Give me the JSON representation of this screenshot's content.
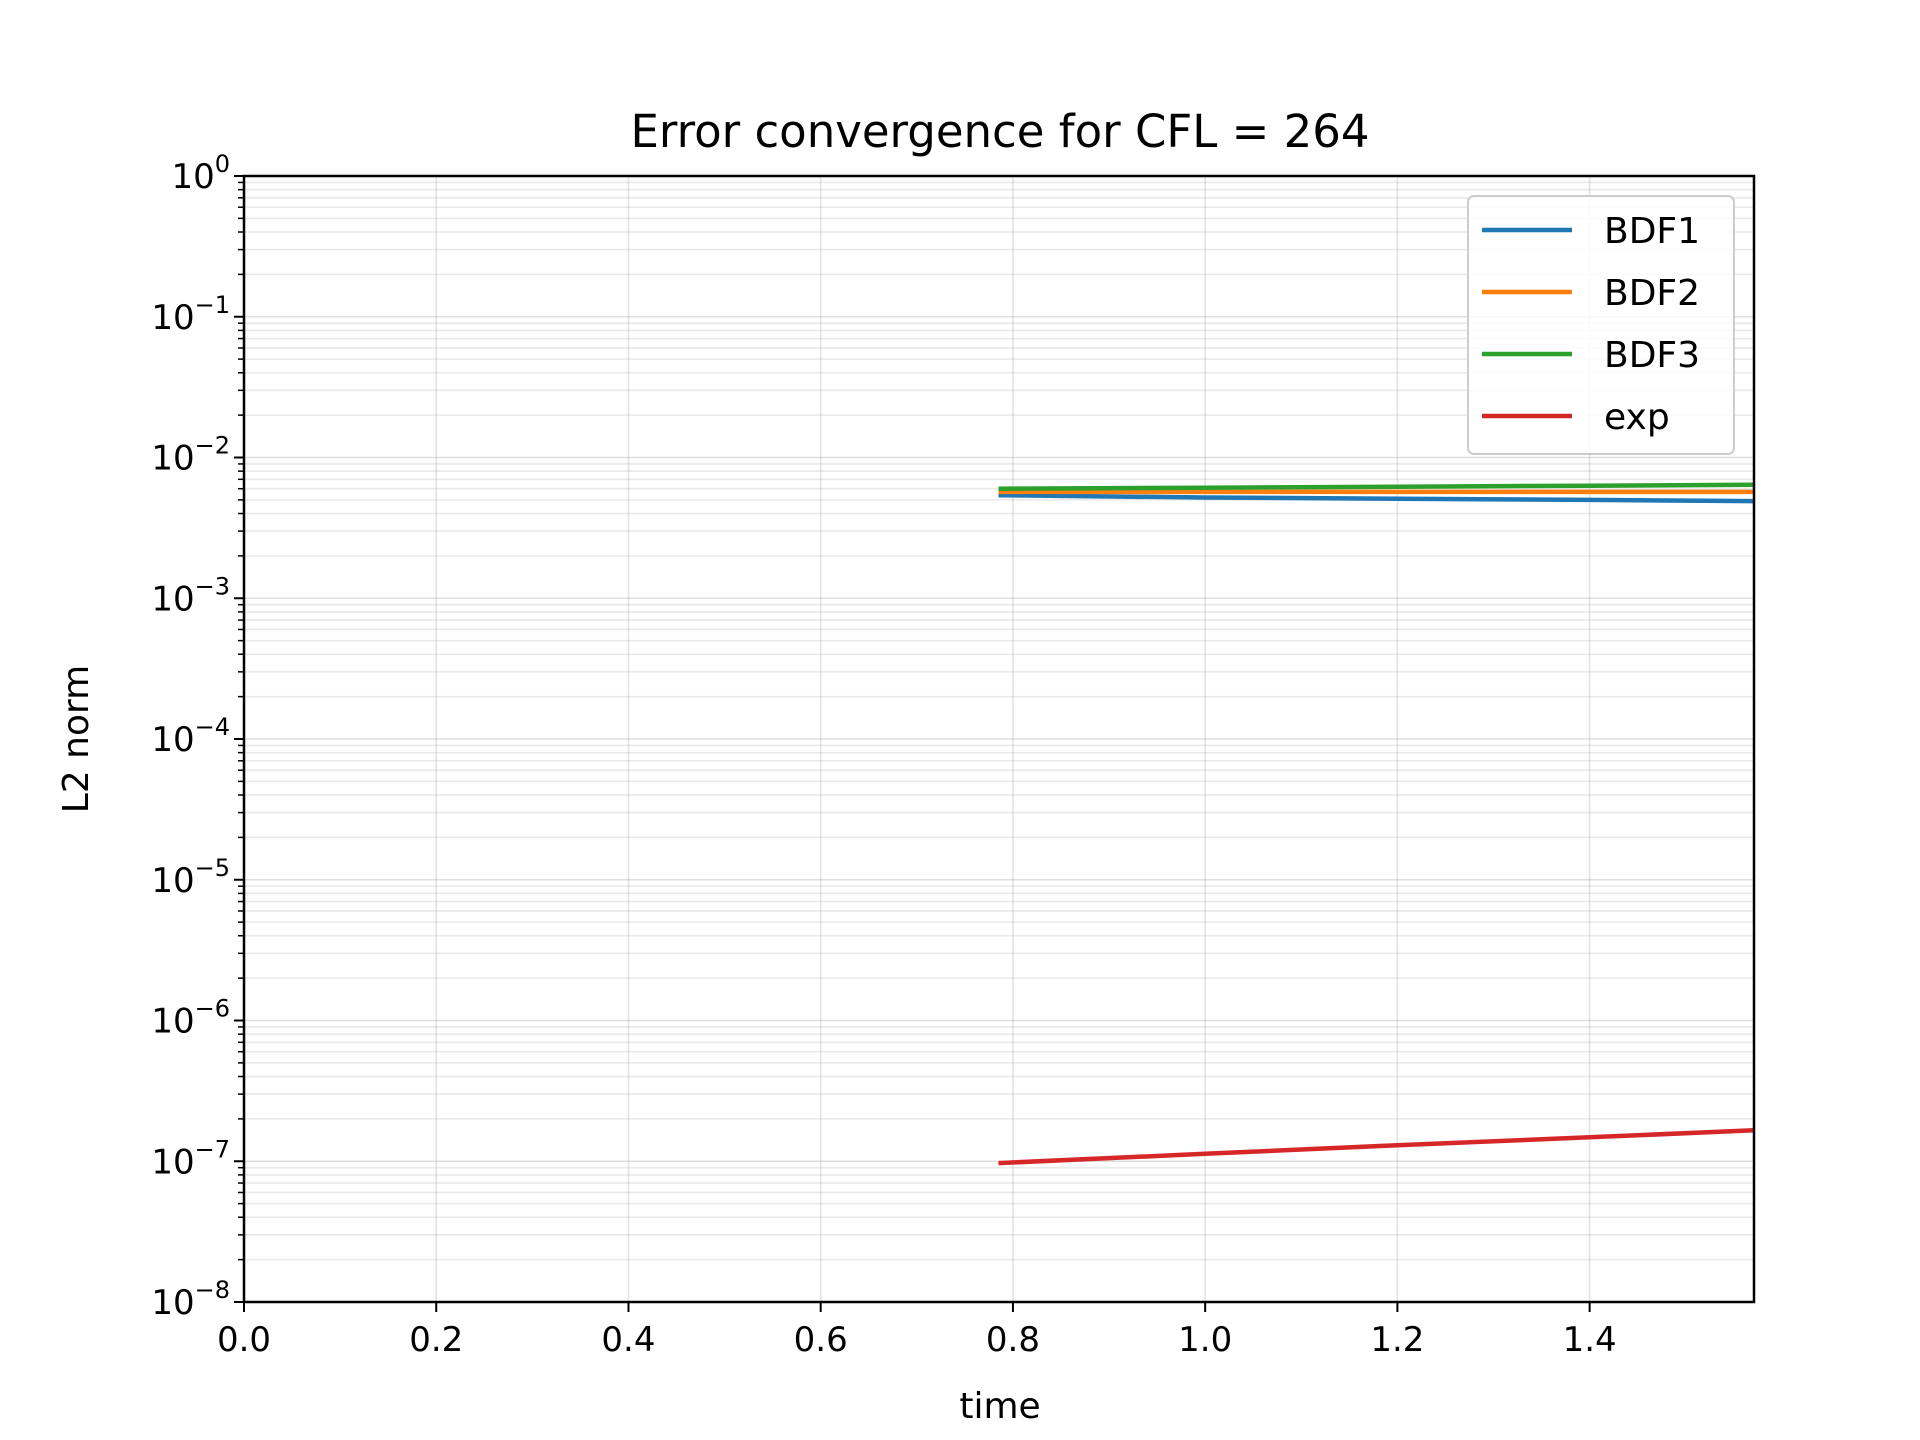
{
  "chart_data": {
    "type": "line",
    "title": "Error convergence for CFL = 264",
    "xlabel": "time",
    "ylabel": "L2 norm",
    "xlim": [
      0.0,
      1.571
    ],
    "ylim": [
      1e-08,
      1
    ],
    "yscale": "log",
    "grid": true,
    "legend_position": "top-right",
    "x_ticks": [
      "0.0",
      "0.2",
      "0.4",
      "0.6",
      "0.8",
      "1.0",
      "1.2",
      "1.4"
    ],
    "x_tick_values": [
      0.0,
      0.2,
      0.4,
      0.6,
      0.8,
      1.0,
      1.2,
      1.4
    ],
    "y_ticks": [
      {
        "base": "10",
        "exp": "0"
      },
      {
        "base": "10",
        "exp": "−1"
      },
      {
        "base": "10",
        "exp": "−2"
      },
      {
        "base": "10",
        "exp": "−3"
      },
      {
        "base": "10",
        "exp": "−4"
      },
      {
        "base": "10",
        "exp": "−5"
      },
      {
        "base": "10",
        "exp": "−6"
      },
      {
        "base": "10",
        "exp": "−7"
      },
      {
        "base": "10",
        "exp": "−8"
      }
    ],
    "y_tick_values": [
      1,
      0.1,
      0.01,
      0.001,
      0.0001,
      1e-05,
      1e-06,
      1e-07,
      1e-08
    ],
    "series": [
      {
        "name": "BDF1",
        "color": "#1f77b4",
        "x": [
          0.785,
          1.0,
          1.2,
          1.4,
          1.571
        ],
        "y": [
          0.0054,
          0.0052,
          0.0051,
          0.005,
          0.0049
        ]
      },
      {
        "name": "BDF2",
        "color": "#ff7f0e",
        "x": [
          0.785,
          1.0,
          1.2,
          1.4,
          1.571
        ],
        "y": [
          0.0057,
          0.0057,
          0.0057,
          0.0057,
          0.0057
        ]
      },
      {
        "name": "BDF3",
        "color": "#2ca02c",
        "x": [
          0.785,
          1.0,
          1.2,
          1.4,
          1.571
        ],
        "y": [
          0.006,
          0.0061,
          0.0062,
          0.0063,
          0.0064
        ]
      },
      {
        "name": "exp",
        "color": "#d62728",
        "x": [
          0.785,
          1.0,
          1.2,
          1.4,
          1.571
        ],
        "y": [
          9.7e-08,
          1.13e-07,
          1.3e-07,
          1.48e-07,
          1.66e-07
        ]
      }
    ]
  }
}
